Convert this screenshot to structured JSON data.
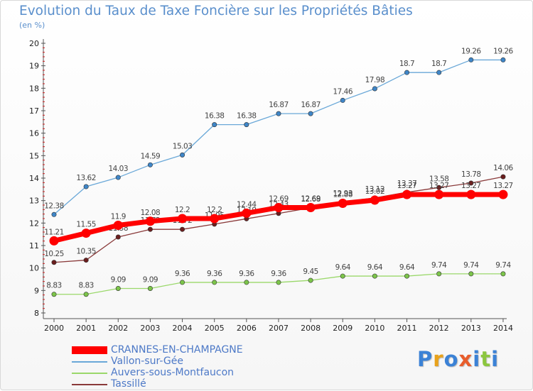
{
  "chart_data": {
    "type": "line",
    "title": "Evolution du Taux de Taxe Foncière sur les Propriétés Bâties",
    "ylabel": "(en %)",
    "xlabel": "",
    "ylim": [
      8,
      20
    ],
    "yticks": [
      "8",
      "9",
      "10",
      "11",
      "12",
      "13",
      "14",
      "15",
      "16",
      "17",
      "18",
      "19",
      "20"
    ],
    "categories": [
      "2000",
      "2001",
      "2002",
      "2003",
      "2004",
      "2005",
      "2006",
      "2007",
      "2008",
      "2009",
      "2010",
      "2011",
      "2012",
      "2013",
      "2014"
    ],
    "series": [
      {
        "name": "Vallon-sur-Gée",
        "color": "#6aa8d8",
        "marker": "#3f86c8",
        "values": [
          12.38,
          13.62,
          14.03,
          14.59,
          15.03,
          16.38,
          16.38,
          16.87,
          16.87,
          17.46,
          17.98,
          18.7,
          18.7,
          19.26,
          19.26
        ],
        "labels": [
          "12.38",
          "13.62",
          "14.03",
          "14.59",
          "15.03",
          "16.38",
          "16.38",
          "16.87",
          "16.87",
          "17.46",
          "17.98",
          "18.7",
          "18.7",
          "19.26",
          "19.26"
        ]
      },
      {
        "name": "Auvers-sous-Montfaucon",
        "color": "#9ad86a",
        "marker": "#7cc54a",
        "values": [
          8.83,
          8.83,
          9.09,
          9.09,
          9.36,
          9.36,
          9.36,
          9.36,
          9.45,
          9.64,
          9.64,
          9.64,
          9.74,
          9.74,
          9.74
        ],
        "labels": [
          "8.83",
          "8.83",
          "9.09",
          "9.09",
          "9.36",
          "9.36",
          "9.36",
          "9.36",
          "9.45",
          "9.64",
          "9.64",
          "9.64",
          "9.74",
          "9.74",
          "9.74"
        ]
      },
      {
        "name": "Tassillé",
        "color": "#8a3a3a",
        "marker": "#6b1e1e",
        "values": [
          10.25,
          10.35,
          11.38,
          11.72,
          11.72,
          11.95,
          12.19,
          12.43,
          12.68,
          12.93,
          13.12,
          13.37,
          13.58,
          13.78,
          14.06
        ],
        "labels": [
          "10.25",
          "10.35",
          "11.38",
          "11.72",
          "11.72",
          "11.95",
          "12.19",
          "12.43",
          "12.68",
          "12.93",
          "13.12",
          "13.37",
          "13.58",
          "13.78",
          "14.06"
        ]
      },
      {
        "name": "CRANNES-EN-CHAMPAGNE",
        "color": "#ff0000",
        "marker": "#ff0000",
        "values": [
          11.21,
          11.55,
          11.9,
          12.08,
          12.2,
          12.2,
          12.44,
          12.69,
          12.69,
          12.88,
          13.02,
          13.27,
          13.27,
          13.27,
          13.27
        ],
        "labels": [
          "11.21",
          "11.55",
          "11.9",
          "12.08",
          "12.2",
          "12.2",
          "12.44",
          "12.69",
          "12.69",
          "12.88",
          "13.02",
          "13.27",
          "13.27",
          "13.27",
          "13.27"
        ]
      }
    ],
    "legend": [
      {
        "name": "CRANNES-EN-CHAMPAGNE",
        "color": "#ff0000",
        "thick": true
      },
      {
        "name": "Vallon-sur-Gée",
        "color": "#6aa8d8",
        "thick": false
      },
      {
        "name": "Auvers-sous-Montfaucon",
        "color": "#9ad86a",
        "thick": false
      },
      {
        "name": "Tassillé",
        "color": "#8a3a3a",
        "thick": false
      }
    ],
    "legend_position": "bottom-left",
    "grid": false
  },
  "logo": {
    "letters": [
      "P",
      "r",
      "o",
      "x",
      "i",
      "t",
      "i"
    ],
    "colors": [
      "#3b82d6",
      "#e8a21c",
      "#3b82d6",
      "#e85d2c",
      "#3b82d6",
      "#8cc63f",
      "#3b82d6"
    ]
  }
}
